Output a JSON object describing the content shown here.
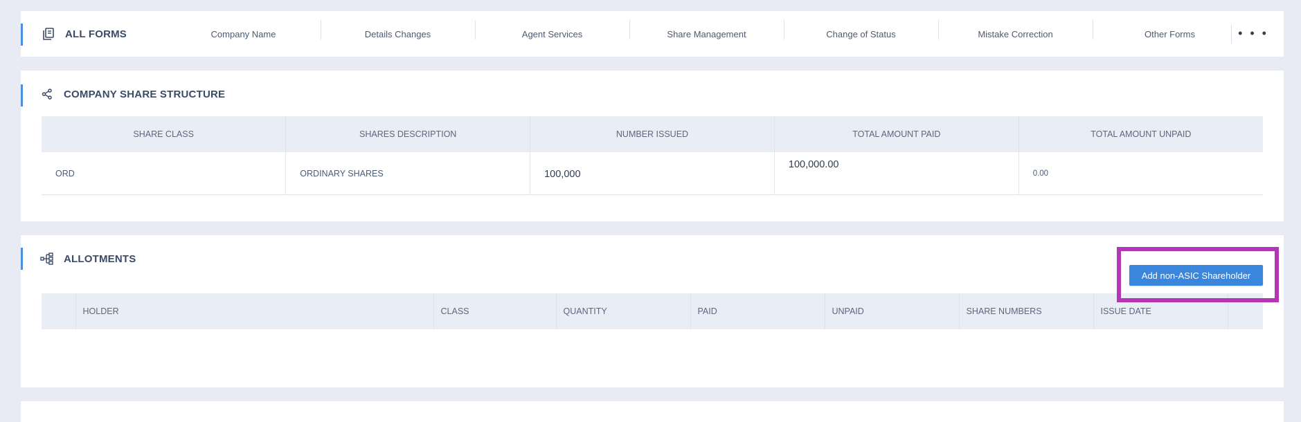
{
  "forms": {
    "title": "ALL FORMS",
    "links": [
      "Company Name",
      "Details Changes",
      "Agent Services",
      "Share Management",
      "Change of Status",
      "Mistake Correction",
      "Other Forms"
    ],
    "more": "• • •"
  },
  "share_structure": {
    "title": "COMPANY SHARE STRUCTURE",
    "headers": [
      "SHARE CLASS",
      "SHARES DESCRIPTION",
      "NUMBER ISSUED",
      "TOTAL AMOUNT PAID",
      "TOTAL AMOUNT UNPAID"
    ],
    "rows": [
      {
        "class": "ORD",
        "description": "ORDINARY SHARES",
        "issued": "100,000",
        "paid": "100,000.00",
        "unpaid": "0.00"
      }
    ]
  },
  "allotments": {
    "title": "ALLOTMENTS",
    "add_button": "Add non-ASIC Shareholder",
    "headers": [
      "",
      "HOLDER",
      "CLASS",
      "QUANTITY",
      "PAID",
      "UNPAID",
      "SHARE NUMBERS",
      "ISSUE DATE",
      ""
    ]
  },
  "colors": {
    "accent": "#4a90e2",
    "button": "#3b86dd",
    "highlight": "#b536b5",
    "header_bg": "#e9edf5",
    "page_bg": "#e8ebf3"
  }
}
